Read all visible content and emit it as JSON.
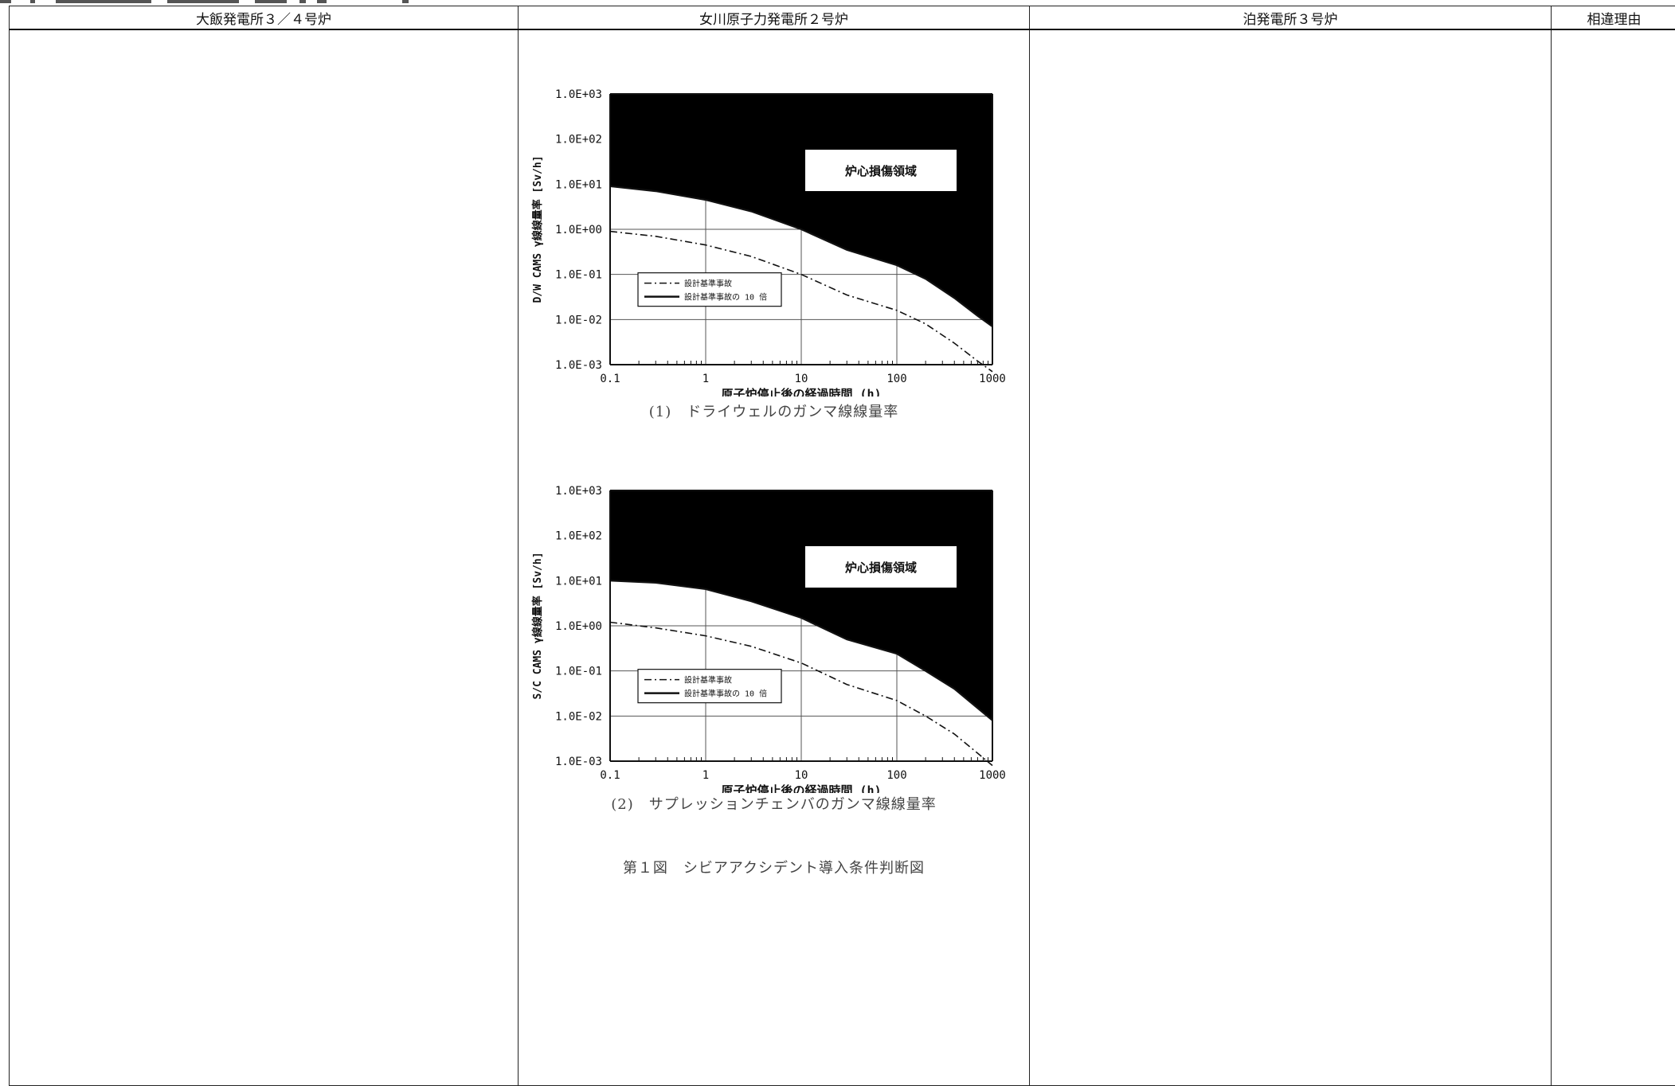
{
  "header": {
    "col1": "大飯発電所３／４号炉",
    "col2": "女川原子力発電所２号炉",
    "col3": "泊発電所３号炉",
    "col4": "相違理由"
  },
  "figure": {
    "chart_data": [
      {
        "type": "line",
        "caption": "(1)　ドライウェルのガンマ線線量率",
        "ylabel": "D/W CAMS γ線線量率 [Sv/h]",
        "xlabel": "原子炉停止後の経過時間 (h)",
        "x_scale": "log",
        "y_scale": "log",
        "xlim": [
          0.1,
          1000
        ],
        "ylim": [
          0.001,
          1000
        ],
        "x_ticks": [
          "0.1",
          "1",
          "10",
          "100",
          "1000"
        ],
        "y_ticks": [
          "1.0E-03",
          "1.0E-02",
          "1.0E-01",
          "1.0E+00",
          "1.0E+01",
          "1.0E+02",
          "1.0E+03"
        ],
        "grid": true,
        "region_label": "炉心損傷領域",
        "region_color": "#000000",
        "legend_position": "lower-left",
        "series": [
          {
            "name": "設計基準事故",
            "style": "dash-dot",
            "x": [
              0.1,
              0.3,
              1,
              3,
              10,
              30,
              100,
              200,
              400,
              700,
              1000
            ],
            "y": [
              0.9,
              0.7,
              0.45,
              0.25,
              0.1,
              0.035,
              0.016,
              0.008,
              0.003,
              0.0012,
              0.0007
            ]
          },
          {
            "name": "設計基準事故の 10 倍",
            "style": "solid",
            "x": [
              0.1,
              0.3,
              1,
              3,
              10,
              30,
              100,
              200,
              400,
              700,
              1000
            ],
            "y": [
              9,
              7,
              4.5,
              2.5,
              1,
              0.35,
              0.16,
              0.08,
              0.03,
              0.012,
              0.007
            ]
          }
        ]
      },
      {
        "type": "line",
        "caption": "(2)　サプレッションチェンバのガンマ線線量率",
        "ylabel": "S/C CAMS γ線線量率 [Sv/h]",
        "xlabel": "原子炉停止後の経過時間 (h)",
        "x_scale": "log",
        "y_scale": "log",
        "xlim": [
          0.1,
          1000
        ],
        "ylim": [
          0.001,
          1000
        ],
        "x_ticks": [
          "0.1",
          "1",
          "10",
          "100",
          "1000"
        ],
        "y_ticks": [
          "1.0E-03",
          "1.0E-02",
          "1.0E-01",
          "1.0E+00",
          "1.0E+01",
          "1.0E+02",
          "1.0E+03"
        ],
        "grid": true,
        "region_label": "炉心損傷領域",
        "region_color": "#000000",
        "legend_position": "lower-left",
        "series": [
          {
            "name": "設計基準事故",
            "style": "dash-dot",
            "x": [
              0.1,
              0.3,
              1,
              3,
              10,
              30,
              100,
              200,
              400,
              700,
              1000
            ],
            "y": [
              1.2,
              0.9,
              0.6,
              0.35,
              0.15,
              0.05,
              0.022,
              0.01,
              0.004,
              0.0015,
              0.0008
            ]
          },
          {
            "name": "設計基準事故の 10 倍",
            "style": "solid",
            "x": [
              0.1,
              0.3,
              1,
              3,
              10,
              30,
              100,
              200,
              400,
              700,
              1000
            ],
            "y": [
              10,
              9,
              6.5,
              3.5,
              1.5,
              0.5,
              0.24,
              0.1,
              0.04,
              0.015,
              0.008
            ]
          }
        ]
      }
    ],
    "title": "第１図　シビアアクシデント導入条件判断図"
  }
}
